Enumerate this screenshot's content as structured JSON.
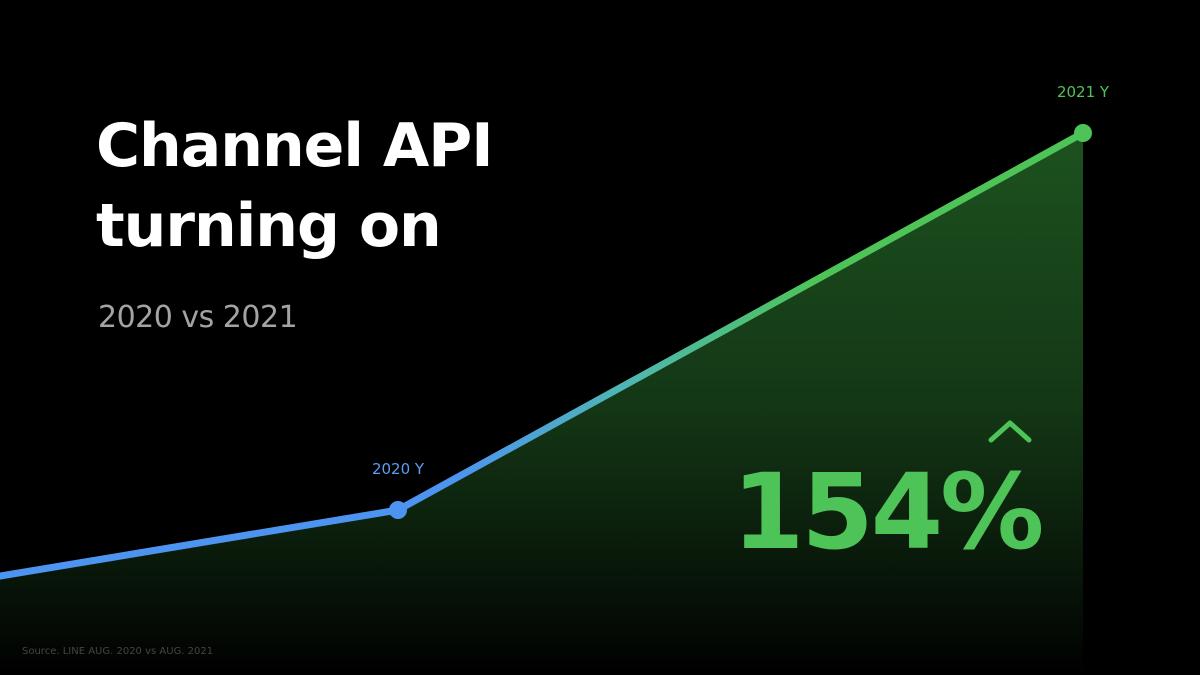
{
  "slide": {
    "title_line1": "Channel API",
    "title_line2": "turning on",
    "subtitle": "2020 vs 2021",
    "highlight": "154%",
    "source": "Source. LINE AUG. 2020 vs AUG. 2021"
  },
  "colors": {
    "background": "#000000",
    "line_start": "#4d94f0",
    "line_end": "#4ec458",
    "label_2020": "#5a9ef5",
    "label_2021": "#4ec458",
    "area_fill": "#1a4a1c"
  },
  "icons": {
    "highlight_marker": "caret-up-icon"
  },
  "chart_data": {
    "type": "line",
    "title": "Channel API turning on",
    "subtitle": "2020 vs 2021",
    "series": [
      {
        "points": [
          {
            "label": "2020 Y",
            "value": 1.0
          },
          {
            "label": "2021 Y",
            "value": 2.54
          }
        ]
      }
    ],
    "annotation": "154%",
    "grid": false,
    "legend": "none"
  }
}
